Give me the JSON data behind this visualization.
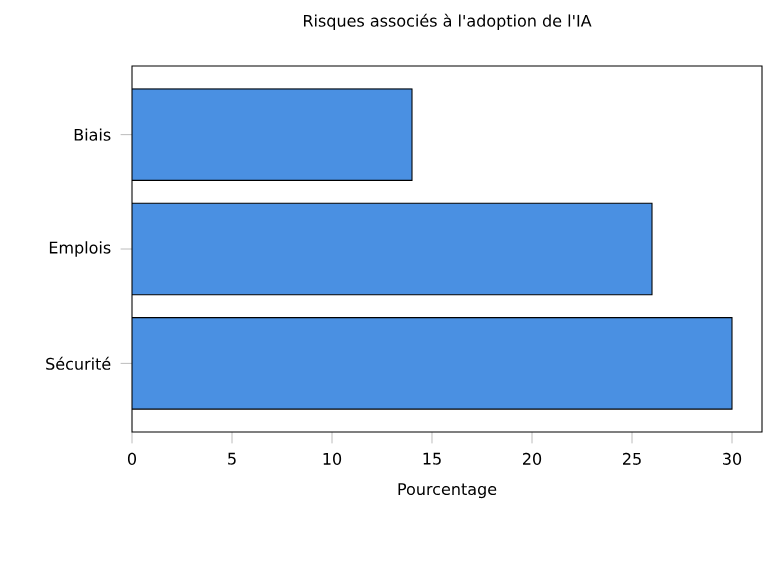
{
  "chart_data": {
    "type": "bar",
    "orientation": "horizontal",
    "title": "Risques associés à l'adoption de l'IA",
    "xlabel": "Pourcentage",
    "categories": [
      "Biais",
      "Emplois",
      "Sécurité"
    ],
    "values": [
      14,
      26,
      30
    ],
    "color": "#4a90e2",
    "xlim": [
      0,
      31.5
    ],
    "xticks": [
      0,
      5,
      10,
      15,
      20,
      25,
      30
    ]
  }
}
